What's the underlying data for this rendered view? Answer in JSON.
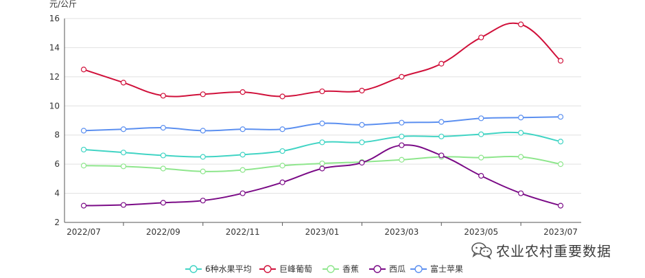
{
  "chart_data": {
    "type": "line",
    "title": "",
    "xlabel": "",
    "ylabel": "元/公斤",
    "ylim": [
      2,
      16
    ],
    "yticks": [
      2,
      4,
      6,
      8,
      10,
      12,
      14,
      16
    ],
    "grid": true,
    "legend_position": "bottom-center",
    "x": [
      "2022/07",
      "2022/08",
      "2022/09",
      "2022/10",
      "2022/11",
      "2022/12",
      "2023/01",
      "2023/02",
      "2023/03",
      "2023/04",
      "2023/05",
      "2023/06",
      "2023/07"
    ],
    "xtick_labels": [
      "2022/07",
      "2022/09",
      "2022/11",
      "2023/01",
      "2023/03",
      "2023/05",
      "2023/07"
    ],
    "series": [
      {
        "name": "6种水果平均",
        "color": "#40d4c4",
        "values": [
          7.0,
          6.8,
          6.6,
          6.5,
          6.65,
          6.9,
          7.5,
          7.5,
          7.9,
          7.9,
          8.05,
          8.15,
          7.55
        ]
      },
      {
        "name": "巨峰葡萄",
        "color": "#d0103a",
        "values": [
          12.5,
          11.6,
          10.7,
          10.8,
          10.95,
          10.65,
          11.0,
          11.05,
          12.0,
          12.9,
          14.7,
          15.6,
          13.1
        ]
      },
      {
        "name": "香蕉",
        "color": "#8ee68c",
        "values": [
          5.9,
          5.85,
          5.7,
          5.5,
          5.6,
          5.9,
          6.05,
          6.15,
          6.3,
          6.5,
          6.45,
          6.5,
          6.0
        ]
      },
      {
        "name": "西瓜",
        "color": "#7a0a86",
        "values": [
          3.15,
          3.2,
          3.35,
          3.5,
          4.0,
          4.75,
          5.7,
          6.1,
          7.3,
          6.6,
          5.2,
          4.0,
          3.15
        ]
      },
      {
        "name": "富士苹果",
        "color": "#5b8ff0",
        "values": [
          8.3,
          8.4,
          8.5,
          8.3,
          8.4,
          8.4,
          8.8,
          8.7,
          8.85,
          8.9,
          9.15,
          9.2,
          9.25
        ]
      }
    ]
  },
  "watermark": {
    "text": "农业农村重要数据",
    "icon": "wechat-icon"
  }
}
